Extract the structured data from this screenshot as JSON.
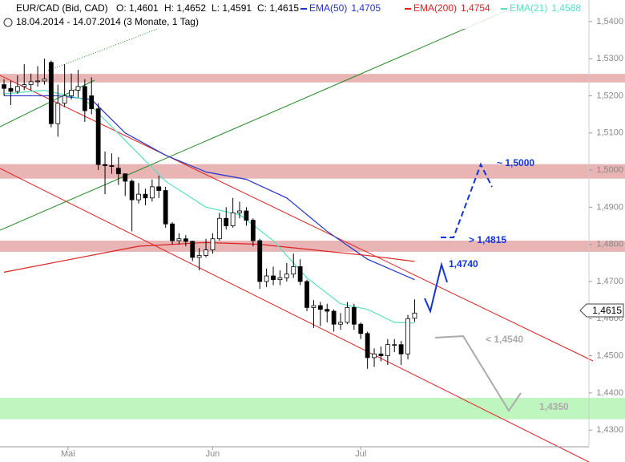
{
  "chart_data": {
    "type": "candlestick",
    "title": "EUR/CAD (Bid, CAD)",
    "ohlc_text": [
      "O: 1,4601",
      "H: 1,4652",
      "L: 1,4591",
      "C: 1,4615"
    ],
    "subtitle": "18.04.2014 - 14.07.2014 (3 Monate, 1 Tag)",
    "open": [
      1.523,
      1.522,
      1.5212,
      1.5225,
      1.523,
      1.5238,
      1.524,
      1.529,
      1.5125,
      1.518,
      1.52,
      1.5215,
      1.5225,
      1.52,
      1.5165,
      1.5015,
      1.5012,
      1.5005,
      1.499,
      1.497,
      1.492,
      1.4935,
      1.4925,
      1.4955,
      1.4945,
      1.4855,
      1.481,
      1.4815,
      1.4808,
      1.4765,
      1.477,
      1.4785,
      1.4815,
      1.487,
      1.485,
      1.4885,
      1.489,
      1.4865,
      1.481,
      1.47,
      1.4715,
      1.4705,
      1.471,
      1.472,
      1.474,
      1.47,
      1.463,
      1.4635,
      1.4625,
      1.462,
      1.4585,
      1.459,
      1.463,
      1.4585,
      1.456,
      1.4495,
      1.4505,
      1.45,
      1.453,
      1.453,
      1.4505,
      1.4601
    ],
    "high": [
      1.5245,
      1.524,
      1.5255,
      1.5285,
      1.526,
      1.528,
      1.53,
      1.5295,
      1.523,
      1.5285,
      1.526,
      1.527,
      1.5245,
      1.525,
      1.518,
      1.505,
      1.5045,
      1.5035,
      1.499,
      1.4975,
      1.4965,
      1.495,
      1.4975,
      1.4985,
      1.4955,
      1.486,
      1.483,
      1.4825,
      1.481,
      1.479,
      1.4815,
      1.483,
      1.4885,
      1.49,
      1.4925,
      1.4915,
      1.49,
      1.487,
      1.4815,
      1.4735,
      1.474,
      1.473,
      1.475,
      1.4775,
      1.476,
      1.4705,
      1.465,
      1.4645,
      1.464,
      1.4625,
      1.4615,
      1.4645,
      1.464,
      1.459,
      1.4565,
      1.452,
      1.4525,
      1.4545,
      1.4545,
      1.454,
      1.461,
      1.4652
    ],
    "low": [
      1.52,
      1.5175,
      1.5205,
      1.5215,
      1.5215,
      1.5225,
      1.523,
      1.5115,
      1.509,
      1.517,
      1.519,
      1.5195,
      1.513,
      1.515,
      1.5,
      1.4935,
      1.499,
      1.496,
      1.493,
      1.4835,
      1.491,
      1.4905,
      1.4915,
      1.4925,
      1.4845,
      1.48,
      1.48,
      1.4795,
      1.4755,
      1.473,
      1.4765,
      1.4775,
      1.481,
      1.484,
      1.4845,
      1.487,
      1.485,
      1.4795,
      1.468,
      1.4685,
      1.469,
      1.469,
      1.47,
      1.471,
      1.469,
      1.462,
      1.4575,
      1.458,
      1.459,
      1.4565,
      1.457,
      1.4585,
      1.457,
      1.4545,
      1.4465,
      1.447,
      1.4485,
      1.4475,
      1.451,
      1.4475,
      1.449,
      1.4591
    ],
    "close": [
      1.522,
      1.5212,
      1.5225,
      1.523,
      1.5238,
      1.524,
      1.5245,
      1.5125,
      1.518,
      1.52,
      1.5215,
      1.5225,
      1.516,
      1.5165,
      1.5015,
      1.5012,
      1.501,
      1.499,
      1.497,
      1.492,
      1.4935,
      1.4925,
      1.4955,
      1.4945,
      1.4855,
      1.481,
      1.4815,
      1.4808,
      1.4765,
      1.477,
      1.4785,
      1.4815,
      1.487,
      1.485,
      1.4885,
      1.489,
      1.4865,
      1.481,
      1.47,
      1.4715,
      1.4705,
      1.471,
      1.472,
      1.474,
      1.47,
      1.463,
      1.4635,
      1.4625,
      1.462,
      1.4585,
      1.459,
      1.463,
      1.4585,
      1.456,
      1.4495,
      1.4505,
      1.45,
      1.453,
      1.453,
      1.4505,
      1.46,
      1.4615
    ],
    "series": [
      {
        "name": "EMA(50)",
        "last_label": "1,4705",
        "color": "#2233cc",
        "x": [
          0,
          8,
          13,
          18,
          24,
          30,
          36,
          42,
          48,
          54,
          61
        ],
        "values": [
          1.52,
          1.52,
          1.519,
          1.51,
          1.504,
          1.4995,
          1.4975,
          1.4925,
          1.4835,
          1.476,
          1.4705
        ]
      },
      {
        "name": "EMA(200)",
        "last_label": "1,4754",
        "color": "#dd2222",
        "x": [
          0,
          10,
          20,
          30,
          38,
          46,
          54,
          61
        ],
        "values": [
          1.4725,
          1.476,
          1.4795,
          1.4805,
          1.48,
          1.4785,
          1.477,
          1.4754
        ]
      },
      {
        "name": "EMA(21)",
        "last_label": "1,4588",
        "color": "#55e0c0",
        "x": [
          0,
          6,
          12,
          18,
          24,
          30,
          35,
          40,
          45,
          50,
          54,
          58,
          61
        ],
        "values": [
          1.5205,
          1.5215,
          1.519,
          1.508,
          1.497,
          1.49,
          1.488,
          1.481,
          1.471,
          1.464,
          1.4625,
          1.459,
          1.4588
        ]
      }
    ],
    "zones": [
      {
        "from": 1.5236,
        "to": 1.5259,
        "color": "#e8b4b4"
      },
      {
        "from": 1.4977,
        "to": 1.5016,
        "color": "#e8b4b4"
      },
      {
        "from": 1.478,
        "to": 1.481,
        "color": "#e8b4b4"
      },
      {
        "from": 1.4329,
        "to": 1.4387,
        "color": "#bff5bf"
      }
    ],
    "xlim": [
      -0.6,
      86.9
    ],
    "xticks": [
      {
        "value": 9.5,
        "label": "Mai"
      },
      {
        "value": 31,
        "label": "Jun"
      },
      {
        "value": 53,
        "label": "Jul"
      }
    ],
    "ylim": [
      1.4255,
      1.5458
    ],
    "yticks": [
      {
        "value": 1.43,
        "label": "1,4300"
      },
      {
        "value": 1.44,
        "label": "1,4400"
      },
      {
        "value": 1.45,
        "label": "1,4500"
      },
      {
        "value": 1.46,
        "label": "1,4600"
      },
      {
        "value": 1.47,
        "label": "1,4700"
      },
      {
        "value": 1.48,
        "label": "1,4800"
      },
      {
        "value": 1.49,
        "label": "1,4900"
      },
      {
        "value": 1.5,
        "label": "1,5000"
      },
      {
        "value": 1.51,
        "label": "1,5100"
      },
      {
        "value": 1.52,
        "label": "1,5200"
      },
      {
        "value": 1.53,
        "label": "1,5300"
      },
      {
        "value": 1.54,
        "label": "1,5400"
      }
    ],
    "annotations": [
      "~ 1,5000",
      "> 1,4815",
      "1,4740",
      "< 1,4540",
      "1,4350"
    ],
    "last_price_label": "1,4615"
  }
}
